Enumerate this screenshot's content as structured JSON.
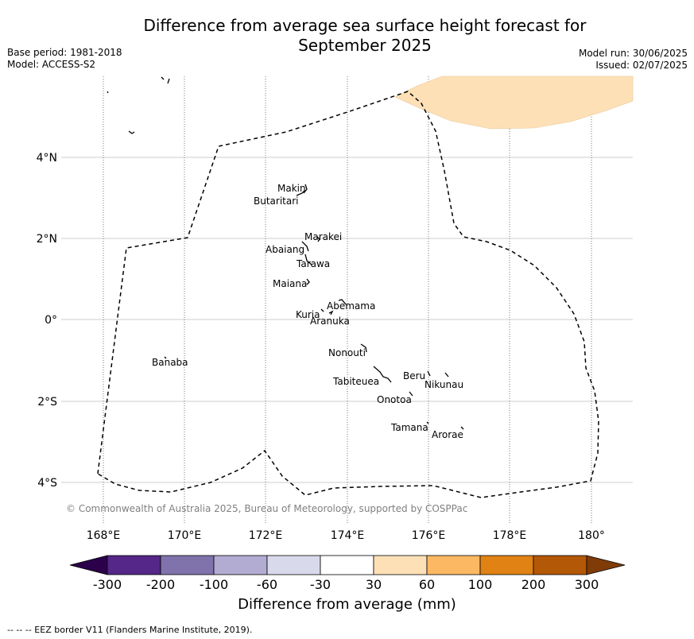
{
  "header": {
    "title_line1": "Difference from average sea surface height forecast for",
    "title_line2": "September 2025",
    "base_period": "Base period: 1981-2018",
    "model": "Model: ACCESS-S2",
    "model_run": "Model run: 30/06/2025",
    "issued": "Issued: 02/07/2025"
  },
  "map": {
    "lon_ticks": [
      "168°E",
      "170°E",
      "172°E",
      "174°E",
      "176°E",
      "178°E",
      "180°"
    ],
    "lat_ticks": [
      "4°N",
      "2°N",
      "0°",
      "2°S",
      "4°S"
    ],
    "copyright": "© Commonwealth of Australia 2025, Bureau of Meteorology, supported by COSPPac",
    "islands": [
      {
        "name": "Makin",
        "lon": 172.95,
        "lat": 3.2
      },
      {
        "name": "Butaritari",
        "lon": 172.85,
        "lat": 3.05
      },
      {
        "name": "Marakei",
        "lon": 173.3,
        "lat": 2.0
      },
      {
        "name": "Abaiang",
        "lon": 173.0,
        "lat": 1.8
      },
      {
        "name": "Tarawa",
        "lon": 173.0,
        "lat": 1.4
      },
      {
        "name": "Maiana",
        "lon": 173.0,
        "lat": 0.95
      },
      {
        "name": "Abemama",
        "lon": 173.85,
        "lat": 0.4
      },
      {
        "name": "Kuria",
        "lon": 173.4,
        "lat": 0.22
      },
      {
        "name": "Aranuka",
        "lon": 173.6,
        "lat": 0.16
      },
      {
        "name": "Nonouti",
        "lon": 174.4,
        "lat": -0.65
      },
      {
        "name": "Banaba",
        "lon": 169.5,
        "lat": -0.87
      },
      {
        "name": "Beru",
        "lon": 176.0,
        "lat": -1.33
      },
      {
        "name": "Nikunau",
        "lon": 176.45,
        "lat": -1.37
      },
      {
        "name": "Tabiteuea",
        "lon": 174.9,
        "lat": -1.4
      },
      {
        "name": "Onotoa",
        "lon": 175.55,
        "lat": -1.8
      },
      {
        "name": "Tamana",
        "lon": 175.98,
        "lat": -2.5
      },
      {
        "name": "Arorae",
        "lon": 176.82,
        "lat": -2.65
      }
    ]
  },
  "colorbar": {
    "labels": [
      "-300",
      "-200",
      "-100",
      "-60",
      "-30",
      "30",
      "60",
      "100",
      "200",
      "300"
    ],
    "colors": [
      "#2d004b",
      "#542788",
      "#8073ac",
      "#b2abd2",
      "#d8daeb",
      "#ffffff",
      "#fee0b6",
      "#fdb863",
      "#e08214",
      "#b35806",
      "#7f3b08"
    ],
    "title": "Difference from average (mm)"
  },
  "footer": "-- -- -- EEZ border V11 (Flanders Marine Institute, 2019)."
}
